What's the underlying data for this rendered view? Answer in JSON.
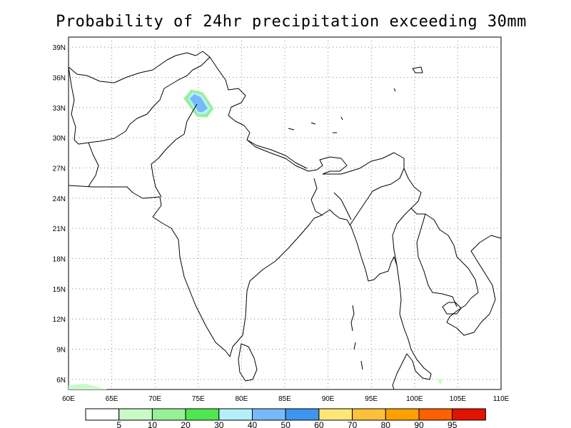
{
  "title": "Probability of 24hr precipitation exceeding 30mm",
  "map": {
    "lon_range": [
      60,
      110
    ],
    "lat_range": [
      5,
      40
    ],
    "lon_ticks": [
      "60E",
      "65E",
      "70E",
      "75E",
      "80E",
      "85E",
      "90E",
      "95E",
      "100E",
      "105E",
      "110E"
    ],
    "lat_ticks": [
      "6N",
      "9N",
      "12N",
      "15N",
      "18N",
      "21N",
      "24N",
      "27N",
      "30N",
      "33N",
      "36N",
      "39N"
    ],
    "grid": true,
    "grid_style": "dotted"
  },
  "colorbar": {
    "colors": [
      "#ffffff",
      "#c8fac8",
      "#96f096",
      "#50e650",
      "#b4f0fa",
      "#78b9fa",
      "#3c96f0",
      "#ffe678",
      "#ffc03c",
      "#ffa000",
      "#ff6000",
      "#e11400"
    ],
    "labels": [
      "5",
      "10",
      "20",
      "30",
      "40",
      "50",
      "60",
      "70",
      "80",
      "90",
      "95"
    ]
  },
  "features": [
    {
      "name": "precipitation-probability-patch",
      "region": "northern Pakistan / Kashmir",
      "lon": [
        73.5,
        76.5
      ],
      "lat": [
        32.5,
        34.5
      ],
      "max_category": "40-50"
    }
  ]
}
